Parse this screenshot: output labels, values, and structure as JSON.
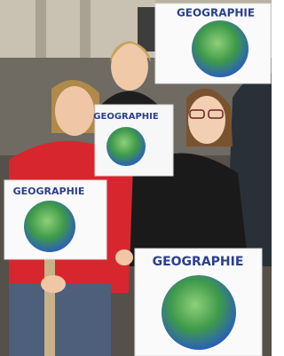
{
  "signs": [
    {
      "label": "GEOGRAPHIE"
    },
    {
      "label": "GEOGRAPHIE"
    },
    {
      "label": "GEOGRAPHIE"
    },
    {
      "label": "GEOGRAPHIE"
    }
  ]
}
